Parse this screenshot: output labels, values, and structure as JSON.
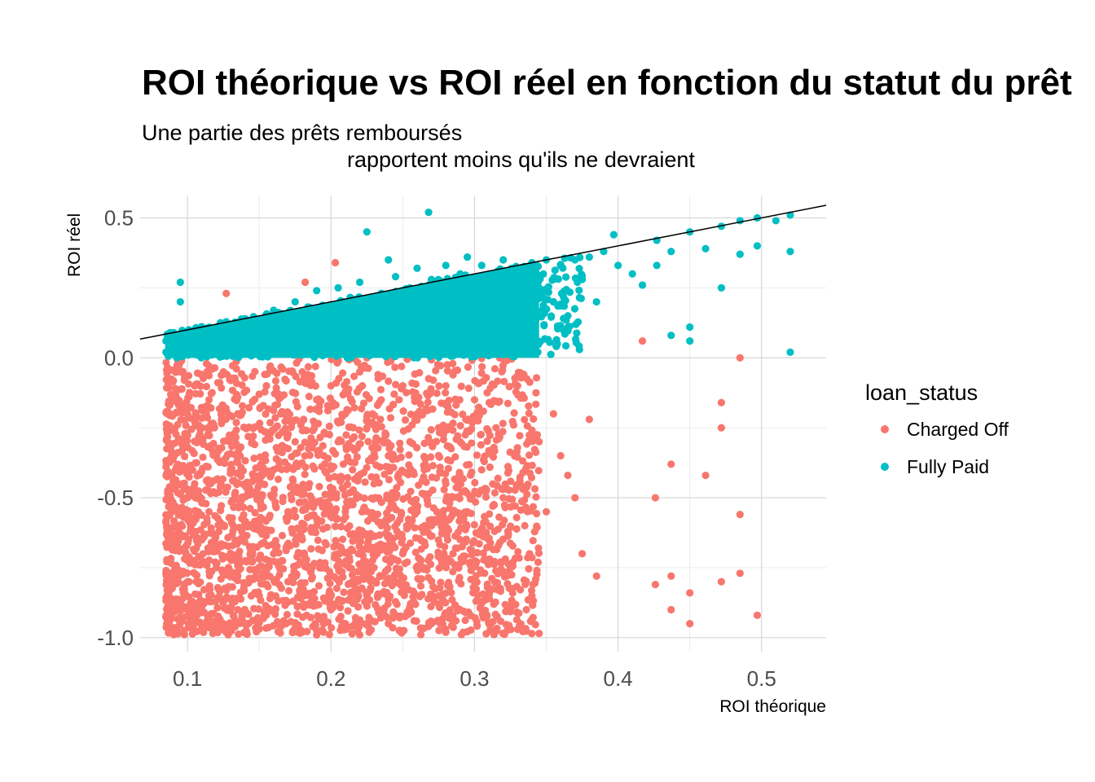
{
  "chart_data": {
    "type": "scatter",
    "title": "ROI théorique vs ROI réel en fonction du statut du prêt",
    "subtitle_line1": "Une partie des prêts remboursés",
    "subtitle_line2": "rapportent moins qu'ils ne devraient",
    "xlabel": "ROI théorique",
    "ylabel": "ROI réel",
    "xlim": [
      0.067,
      0.545
    ],
    "ylim": [
      -1.05,
      0.58
    ],
    "x_ticks": [
      {
        "value": 0.1,
        "label": "0.1"
      },
      {
        "value": 0.2,
        "label": "0.2"
      },
      {
        "value": 0.3,
        "label": "0.3"
      },
      {
        "value": 0.4,
        "label": "0.4"
      },
      {
        "value": 0.5,
        "label": "0.5"
      }
    ],
    "y_ticks": [
      {
        "value": 0.5,
        "label": "0.5"
      },
      {
        "value": 0.0,
        "label": "0.0"
      },
      {
        "value": -0.5,
        "label": "-0.5"
      },
      {
        "value": -1.0,
        "label": "-1.0"
      }
    ],
    "grid": true,
    "reference_line": {
      "type": "identity",
      "slope": 1,
      "intercept": 0,
      "color": "#000000"
    },
    "legend": {
      "title": "loan_status",
      "placement": "right",
      "entries": [
        {
          "label": "Charged Off",
          "color": "#F8766D"
        },
        {
          "label": "Fully Paid",
          "color": "#00BFC4"
        }
      ]
    },
    "series": [
      {
        "name": "Charged Off",
        "color": "#F8766D",
        "points": [
          [
            0.095,
            -0.05
          ],
          [
            0.095,
            -0.3
          ],
          [
            0.095,
            -0.6
          ],
          [
            0.095,
            -0.9
          ],
          [
            0.1,
            -0.2
          ],
          [
            0.1,
            -0.5
          ],
          [
            0.1,
            -0.8
          ],
          [
            0.105,
            -0.1
          ],
          [
            0.105,
            -0.45
          ],
          [
            0.105,
            -0.95
          ],
          [
            0.11,
            -0.25
          ],
          [
            0.11,
            -0.65
          ],
          [
            0.115,
            -0.15
          ],
          [
            0.115,
            -0.55
          ],
          [
            0.115,
            -0.85
          ],
          [
            0.12,
            -0.35
          ],
          [
            0.12,
            -0.75
          ],
          [
            0.125,
            -0.05
          ],
          [
            0.125,
            -0.95
          ],
          [
            0.127,
            0.23
          ],
          [
            0.13,
            -0.4
          ],
          [
            0.13,
            -0.7
          ],
          [
            0.135,
            -0.2
          ],
          [
            0.135,
            -0.9
          ],
          [
            0.14,
            -0.6
          ],
          [
            0.14,
            -0.95
          ],
          [
            0.145,
            -0.3
          ],
          [
            0.15,
            -0.5
          ],
          [
            0.15,
            -0.85
          ],
          [
            0.155,
            -0.1
          ],
          [
            0.16,
            -0.7
          ],
          [
            0.16,
            -0.4
          ],
          [
            0.165,
            -0.2
          ],
          [
            0.165,
            -0.95
          ],
          [
            0.17,
            -0.55
          ],
          [
            0.17,
            -0.8
          ],
          [
            0.175,
            -0.3
          ],
          [
            0.18,
            -0.05
          ],
          [
            0.18,
            -0.65
          ],
          [
            0.18,
            -0.98
          ],
          [
            0.182,
            0.27
          ],
          [
            0.185,
            -0.45
          ],
          [
            0.185,
            -0.85
          ],
          [
            0.19,
            -0.15
          ],
          [
            0.19,
            -0.6
          ],
          [
            0.19,
            -0.99
          ],
          [
            0.195,
            -0.35
          ],
          [
            0.195,
            -0.75
          ],
          [
            0.2,
            -0.1
          ],
          [
            0.2,
            -0.5
          ],
          [
            0.2,
            -0.9
          ],
          [
            0.203,
            0.34
          ],
          [
            0.205,
            -0.3
          ],
          [
            0.205,
            -0.7
          ],
          [
            0.21,
            -0.2
          ],
          [
            0.21,
            -0.55
          ],
          [
            0.21,
            -0.95
          ],
          [
            0.215,
            -0.4
          ],
          [
            0.215,
            -0.8
          ],
          [
            0.22,
            -0.05
          ],
          [
            0.22,
            -0.65
          ],
          [
            0.22,
            -0.99
          ],
          [
            0.225,
            -0.25
          ],
          [
            0.225,
            -0.85
          ],
          [
            0.23,
            -0.45
          ],
          [
            0.23,
            -0.75
          ],
          [
            0.235,
            -0.15
          ],
          [
            0.235,
            -0.6
          ],
          [
            0.24,
            -0.35
          ],
          [
            0.24,
            -0.95
          ],
          [
            0.245,
            -0.5
          ],
          [
            0.245,
            -0.8
          ],
          [
            0.25,
            -0.1
          ],
          [
            0.25,
            -0.7
          ],
          [
            0.255,
            -0.3
          ],
          [
            0.255,
            -0.9
          ],
          [
            0.26,
            -0.55
          ],
          [
            0.26,
            -0.2
          ],
          [
            0.265,
            -0.75
          ],
          [
            0.265,
            -0.4
          ],
          [
            0.27,
            -0.6
          ],
          [
            0.27,
            -0.95
          ],
          [
            0.275,
            -0.25
          ],
          [
            0.275,
            -0.85
          ],
          [
            0.28,
            -0.45
          ],
          [
            0.28,
            -0.1
          ],
          [
            0.285,
            -0.7
          ],
          [
            0.29,
            -0.3
          ],
          [
            0.29,
            -0.9
          ],
          [
            0.295,
            -0.55
          ],
          [
            0.3,
            -0.15
          ],
          [
            0.3,
            -0.8
          ],
          [
            0.305,
            -0.4
          ],
          [
            0.31,
            -0.65
          ],
          [
            0.31,
            -0.95
          ],
          [
            0.315,
            -0.25
          ],
          [
            0.32,
            -0.5
          ],
          [
            0.325,
            -0.75
          ],
          [
            0.33,
            -0.1
          ],
          [
            0.335,
            -0.6
          ],
          [
            0.34,
            -0.85
          ],
          [
            0.345,
            -0.3
          ],
          [
            0.35,
            -0.55
          ],
          [
            0.355,
            -0.2
          ],
          [
            0.36,
            -0.35
          ],
          [
            0.365,
            -0.42
          ],
          [
            0.37,
            -0.5
          ],
          [
            0.375,
            -0.7
          ],
          [
            0.38,
            -0.22
          ],
          [
            0.385,
            -0.78
          ],
          [
            0.417,
            0.06
          ],
          [
            0.426,
            -0.81
          ],
          [
            0.426,
            -0.5
          ],
          [
            0.437,
            -0.38
          ],
          [
            0.437,
            -0.9
          ],
          [
            0.437,
            -0.78
          ],
          [
            0.45,
            -0.84
          ],
          [
            0.45,
            -0.95
          ],
          [
            0.461,
            -0.42
          ],
          [
            0.472,
            -0.8
          ],
          [
            0.472,
            -0.16
          ],
          [
            0.472,
            -0.25
          ],
          [
            0.485,
            -0.56
          ],
          [
            0.485,
            0.0
          ],
          [
            0.485,
            -0.77
          ],
          [
            0.497,
            -0.92
          ]
        ]
      },
      {
        "name": "Fully Paid",
        "color": "#00BFC4",
        "points": [
          [
            0.085,
            0.02
          ],
          [
            0.085,
            0.06
          ],
          [
            0.088,
            0.09
          ],
          [
            0.095,
            0.27
          ],
          [
            0.095,
            0.2
          ],
          [
            0.1,
            0.05
          ],
          [
            0.1,
            0.09
          ],
          [
            0.105,
            0.03
          ],
          [
            0.11,
            0.11
          ],
          [
            0.115,
            0.07
          ],
          [
            0.12,
            0.1
          ],
          [
            0.125,
            0.04
          ],
          [
            0.13,
            0.12
          ],
          [
            0.135,
            0.08
          ],
          [
            0.14,
            0.14
          ],
          [
            0.145,
            0.05
          ],
          [
            0.15,
            0.13
          ],
          [
            0.155,
            0.1
          ],
          [
            0.16,
            0.17
          ],
          [
            0.165,
            0.06
          ],
          [
            0.17,
            0.15
          ],
          [
            0.175,
            0.2
          ],
          [
            0.18,
            0.09
          ],
          [
            0.185,
            0.18
          ],
          [
            0.19,
            0.24
          ],
          [
            0.195,
            0.12
          ],
          [
            0.2,
            0.19
          ],
          [
            0.205,
            0.25
          ],
          [
            0.21,
            0.06
          ],
          [
            0.215,
            0.21
          ],
          [
            0.22,
            0.27
          ],
          [
            0.225,
            0.45
          ],
          [
            0.23,
            0.14
          ],
          [
            0.235,
            0.23
          ],
          [
            0.24,
            0.35
          ],
          [
            0.245,
            0.29
          ],
          [
            0.25,
            0.18
          ],
          [
            0.255,
            0.25
          ],
          [
            0.26,
            0.32
          ],
          [
            0.265,
            0.1
          ],
          [
            0.268,
            0.52
          ],
          [
            0.27,
            0.28
          ],
          [
            0.275,
            0.2
          ],
          [
            0.28,
            0.33
          ],
          [
            0.285,
            0.15
          ],
          [
            0.29,
            0.3
          ],
          [
            0.295,
            0.36
          ],
          [
            0.3,
            0.22
          ],
          [
            0.305,
            0.33
          ],
          [
            0.31,
            0.12
          ],
          [
            0.315,
            0.27
          ],
          [
            0.32,
            0.35
          ],
          [
            0.325,
            0.18
          ],
          [
            0.33,
            0.3
          ],
          [
            0.335,
            0.08
          ],
          [
            0.34,
            0.34
          ],
          [
            0.345,
            0.25
          ],
          [
            0.35,
            0.35
          ],
          [
            0.355,
            0.2
          ],
          [
            0.36,
            0.33
          ],
          [
            0.365,
            0.15
          ],
          [
            0.37,
            0.35
          ],
          [
            0.375,
            0.28
          ],
          [
            0.38,
            0.36
          ],
          [
            0.385,
            0.2
          ],
          [
            0.39,
            0.38
          ],
          [
            0.397,
            0.44
          ],
          [
            0.4,
            0.33
          ],
          [
            0.41,
            0.3
          ],
          [
            0.417,
            0.26
          ],
          [
            0.427,
            0.42
          ],
          [
            0.427,
            0.33
          ],
          [
            0.437,
            0.38
          ],
          [
            0.437,
            0.08
          ],
          [
            0.45,
            0.45
          ],
          [
            0.45,
            0.11
          ],
          [
            0.45,
            0.06
          ],
          [
            0.461,
            0.39
          ],
          [
            0.472,
            0.47
          ],
          [
            0.472,
            0.25
          ],
          [
            0.485,
            0.49
          ],
          [
            0.485,
            0.37
          ],
          [
            0.497,
            0.5
          ],
          [
            0.497,
            0.4
          ],
          [
            0.51,
            0.49
          ],
          [
            0.52,
            0.51
          ],
          [
            0.52,
            0.38
          ],
          [
            0.52,
            0.02
          ]
        ]
      }
    ]
  }
}
